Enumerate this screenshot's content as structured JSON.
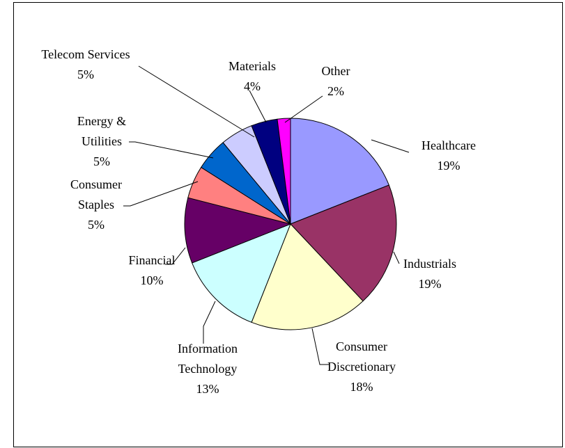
{
  "chart_data": {
    "type": "pie",
    "title": "",
    "start_angle_deg": 0,
    "direction": "clockwise",
    "slices": [
      {
        "name": "Healthcare",
        "label": "Healthcare",
        "value": 19,
        "pct_label": "19%",
        "color": "#9999FF"
      },
      {
        "name": "Industrials",
        "label": "Industrials",
        "value": 19,
        "pct_label": "19%",
        "color": "#993366"
      },
      {
        "name": "Consumer Discretionary",
        "label": "Consumer Discretionary",
        "value": 18,
        "pct_label": "18%",
        "color": "#FFFFCC"
      },
      {
        "name": "Information Technology",
        "label": "Information Technology",
        "value": 13,
        "pct_label": "13%",
        "color": "#CCFFFF"
      },
      {
        "name": "Financial",
        "label": "Financial",
        "value": 10,
        "pct_label": "10%",
        "color": "#660066"
      },
      {
        "name": "Consumer Staples",
        "label": "Consumer Staples",
        "value": 5,
        "pct_label": "5%",
        "color": "#FF8080"
      },
      {
        "name": "Energy & Utilities",
        "label": "Energy & Utilities",
        "value": 5,
        "pct_label": "5%",
        "color": "#0066CC"
      },
      {
        "name": "Telecom Services",
        "label": "Telecom Services",
        "value": 5,
        "pct_label": "5%",
        "color": "#CCCCFF"
      },
      {
        "name": "Materials",
        "label": "Materials",
        "value": 4,
        "pct_label": "4%",
        "color": "#000080"
      },
      {
        "name": "Other",
        "label": "Other",
        "value": 2,
        "pct_label": "2%",
        "color": "#FF00FF"
      }
    ]
  }
}
